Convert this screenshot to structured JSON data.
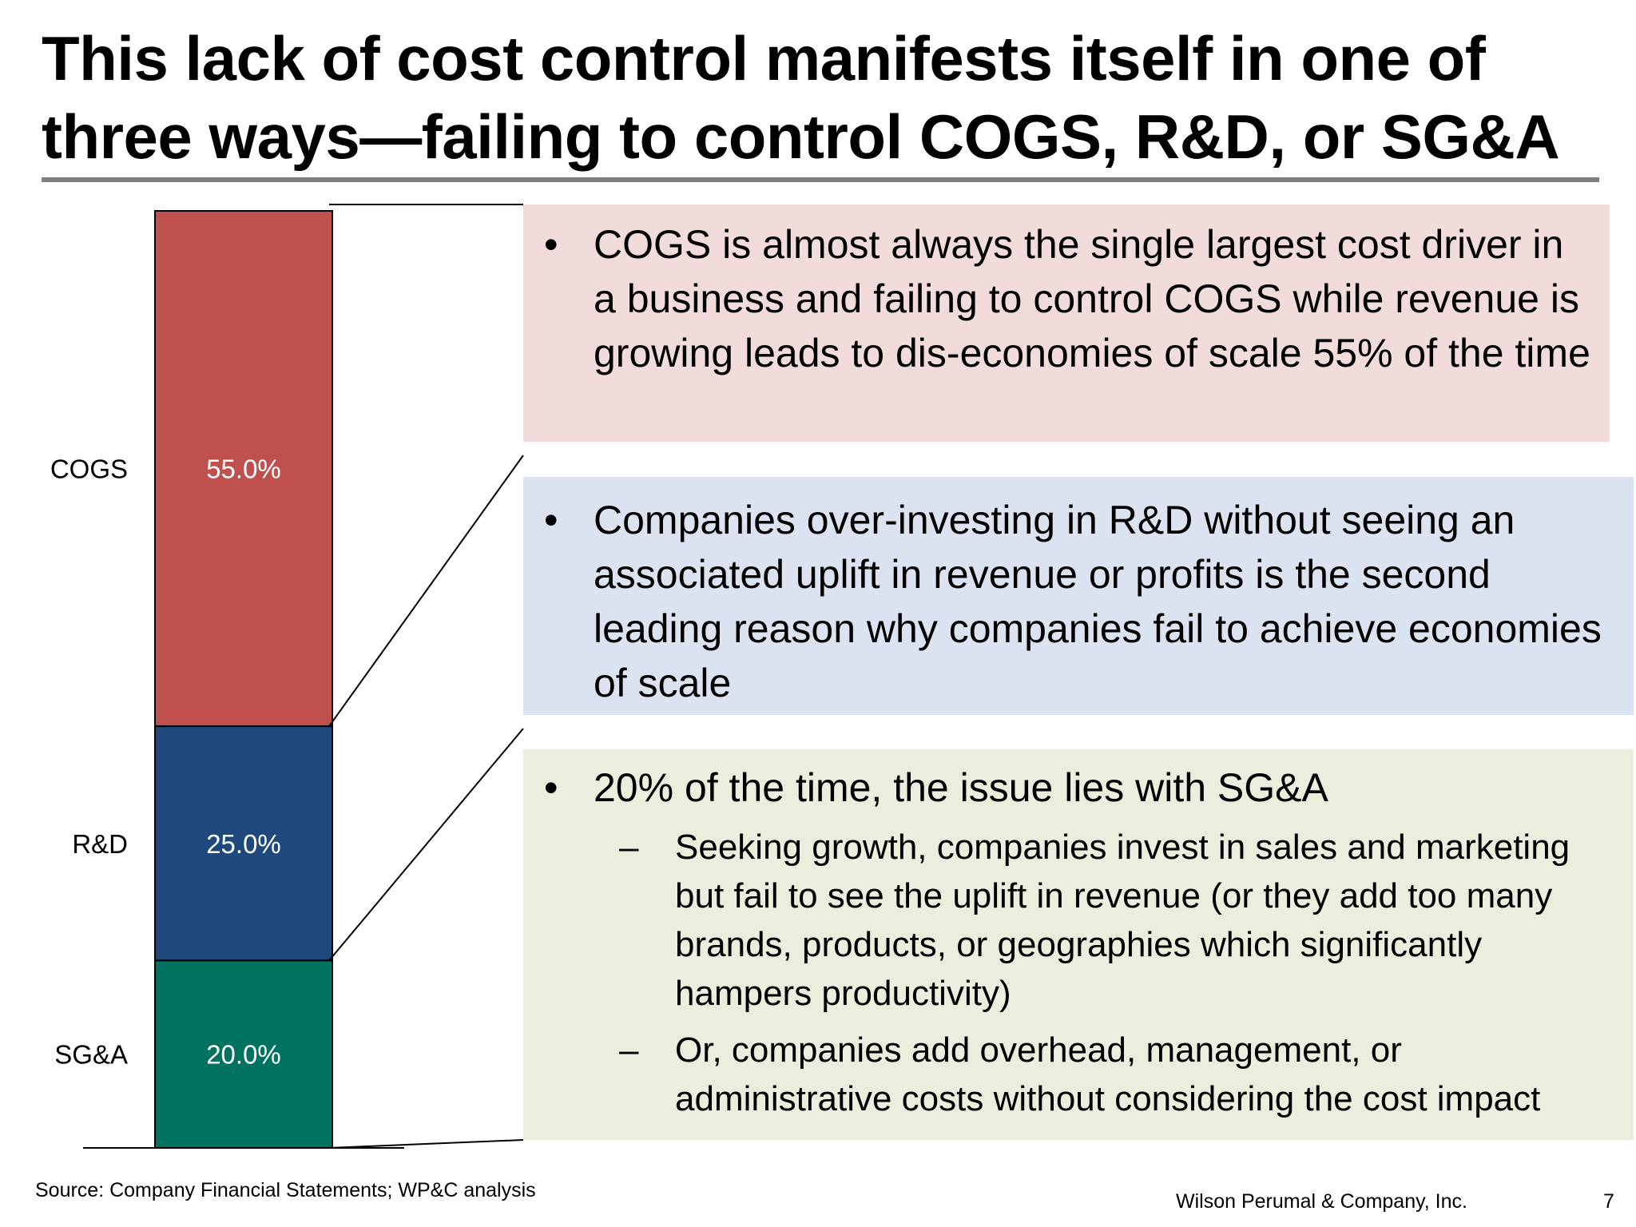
{
  "title": "This lack of cost control manifests itself in one of three ways—failing to control COGS, R&D, or SG&A",
  "chart_data": {
    "type": "bar",
    "stacked": true,
    "categories": [
      "COGS",
      "R&D",
      "SG&A"
    ],
    "values": [
      55.0,
      25.0,
      20.0
    ],
    "value_labels": [
      "55.0%",
      "25.0%",
      "20.0%"
    ],
    "colors": [
      "#c0504d",
      "#1f497d",
      "#007360"
    ],
    "title": "",
    "xlabel": "",
    "ylabel": "",
    "ylim": [
      0,
      100
    ]
  },
  "panels": {
    "cogs": {
      "bullet": "COGS is almost always the single largest cost driver in a business and failing to control COGS while revenue is growing leads to dis-economies of scale 55% of the time"
    },
    "rd": {
      "bullet": "Companies over-investing in R&D without seeing an associated uplift in revenue or profits is the second leading reason why companies fail to achieve economies of scale"
    },
    "sga": {
      "bullet": "20% of the time, the issue lies with SG&A",
      "sub1": "Seeking growth, companies invest in sales and marketing but fail to see the uplift in revenue (or they add too many brands, products, or geographies which significantly hampers productivity)",
      "sub2": "Or, companies add overhead, management, or administrative costs without considering the cost impact"
    }
  },
  "footer": {
    "source": "Source: Company Financial Statements; WP&C analysis",
    "company": "Wilson Perumal & Company, Inc.",
    "page_number": "7"
  }
}
